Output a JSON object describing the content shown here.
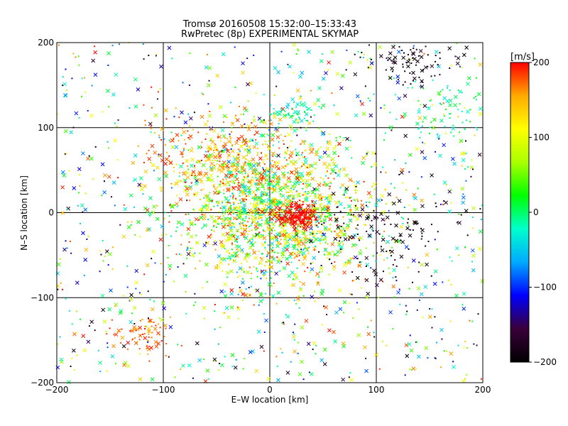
{
  "chart_data": {
    "type": "scatter",
    "title": "Tromsø 20160508 15:32:00–15:33:43",
    "subtitle": "RwPretec (8p) EXPERIMENTAL SKYMAP",
    "xlabel": "E–W location [km]",
    "ylabel": "N–S location [km]",
    "xlim": [
      -200,
      200
    ],
    "ylim": [
      -200,
      200
    ],
    "x_ticks": [
      -200,
      -100,
      0,
      100,
      200
    ],
    "y_ticks": [
      -200,
      -100,
      0,
      100,
      200
    ],
    "grid": true,
    "marker_types": [
      "x",
      "dot"
    ],
    "colorbar": {
      "unit": "[m/s]",
      "range": [
        -200,
        200
      ],
      "ticks": [
        200,
        100,
        0,
        -100,
        -200
      ],
      "colormap": [
        "#000000",
        "#3a003a",
        "#0000ff",
        "#00aaff",
        "#00ffcc",
        "#00ff00",
        "#aaff00",
        "#ffff00",
        "#ffaa00",
        "#ff0000"
      ]
    },
    "series": [
      {
        "label_key": "sparse",
        "count": 900,
        "distribution": {
          "x": [
            -200,
            200
          ],
          "y": [
            -200,
            200
          ]
        },
        "color_value_range": [
          -200,
          200
        ]
      },
      {
        "label_key": "center",
        "count": 1700,
        "distribution": {
          "x_mean": 5,
          "y_mean": 5,
          "x_sd": 45,
          "y_sd": 45
        },
        "color_value_range": [
          -60,
          200
        ]
      },
      {
        "label_key": "red-cluster-center",
        "count": 180,
        "distribution": {
          "x_mean": 25,
          "y_mean": -3,
          "x_sd": 12,
          "y_sd": 7
        },
        "color_value": 200
      },
      {
        "label_key": "upper-left-red",
        "count": 260,
        "distribution": {
          "x_mean": -55,
          "y_mean": 65,
          "x_sd": 40,
          "y_sd": 30
        },
        "color_value_range": [
          120,
          200
        ]
      },
      {
        "label_key": "right-black",
        "count": 120,
        "distribution": {
          "x_mean": 100,
          "y_mean": -20,
          "x_sd": 30,
          "y_sd": 30
        },
        "color_value_range": [
          -200,
          -170
        ]
      },
      {
        "label_key": "top-right-black",
        "count": 90,
        "distribution": {
          "x_mean": 125,
          "y_mean": 180,
          "x_sd": 25,
          "y_sd": 15
        },
        "color_value_range": [
          -200,
          -170
        ]
      },
      {
        "label_key": "top-center-cyan",
        "count": 60,
        "distribution": {
          "x_mean": 25,
          "y_mean": 120,
          "x_sd": 12,
          "y_sd": 6
        },
        "color_value_range": [
          -50,
          20
        ]
      },
      {
        "label_key": "bottom-red",
        "count": 70,
        "distribution": {
          "x_mean": -120,
          "y_mean": -145,
          "x_sd": 15,
          "y_sd": 12
        },
        "color_value_range": [
          150,
          200
        ]
      },
      {
        "label_key": "right-edge-cyan",
        "count": 80,
        "distribution": {
          "x_mean": 160,
          "y_mean": 120,
          "x_sd": 25,
          "y_sd": 25
        },
        "color_value_range": [
          -40,
          40
        ]
      }
    ]
  }
}
